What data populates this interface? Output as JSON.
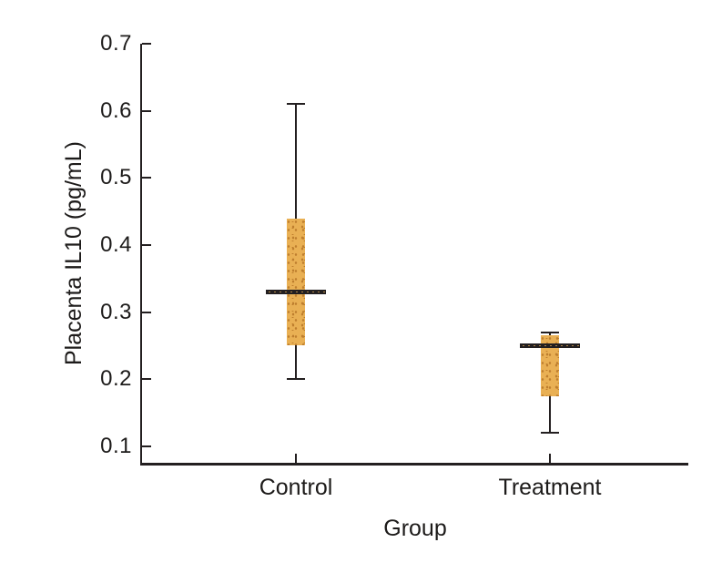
{
  "chart_data": {
    "type": "boxplot",
    "title": "",
    "xlabel": "Group",
    "ylabel": "Placenta IL10 (pg/mL)",
    "categories": [
      "Control",
      "Treatment"
    ],
    "yticks": [
      "0.7",
      "0.6",
      "0.5",
      "0.4",
      "0.3",
      "0.2",
      "0.1"
    ],
    "ytick_values": [
      0.7,
      0.6,
      0.5,
      0.4,
      0.3,
      0.2,
      0.1
    ],
    "ylim": [
      0.075,
      0.7
    ],
    "grid": false,
    "legend": "none",
    "boxes": [
      {
        "category": "Control",
        "whisker_low": 0.2,
        "q1": 0.25,
        "median": 0.33,
        "q3": 0.44,
        "whisker_high": 0.61
      },
      {
        "category": "Treatment",
        "whisker_low": 0.12,
        "q1": 0.175,
        "median": 0.25,
        "q3": 0.265,
        "whisker_high": 0.27
      }
    ],
    "colors": {
      "box_fill": "#e9b054",
      "box_speckle": "#be7e2e",
      "median": "#231f20",
      "axis": "#231f20",
      "text": "#1d1b1a",
      "background": "#ffffff"
    }
  }
}
